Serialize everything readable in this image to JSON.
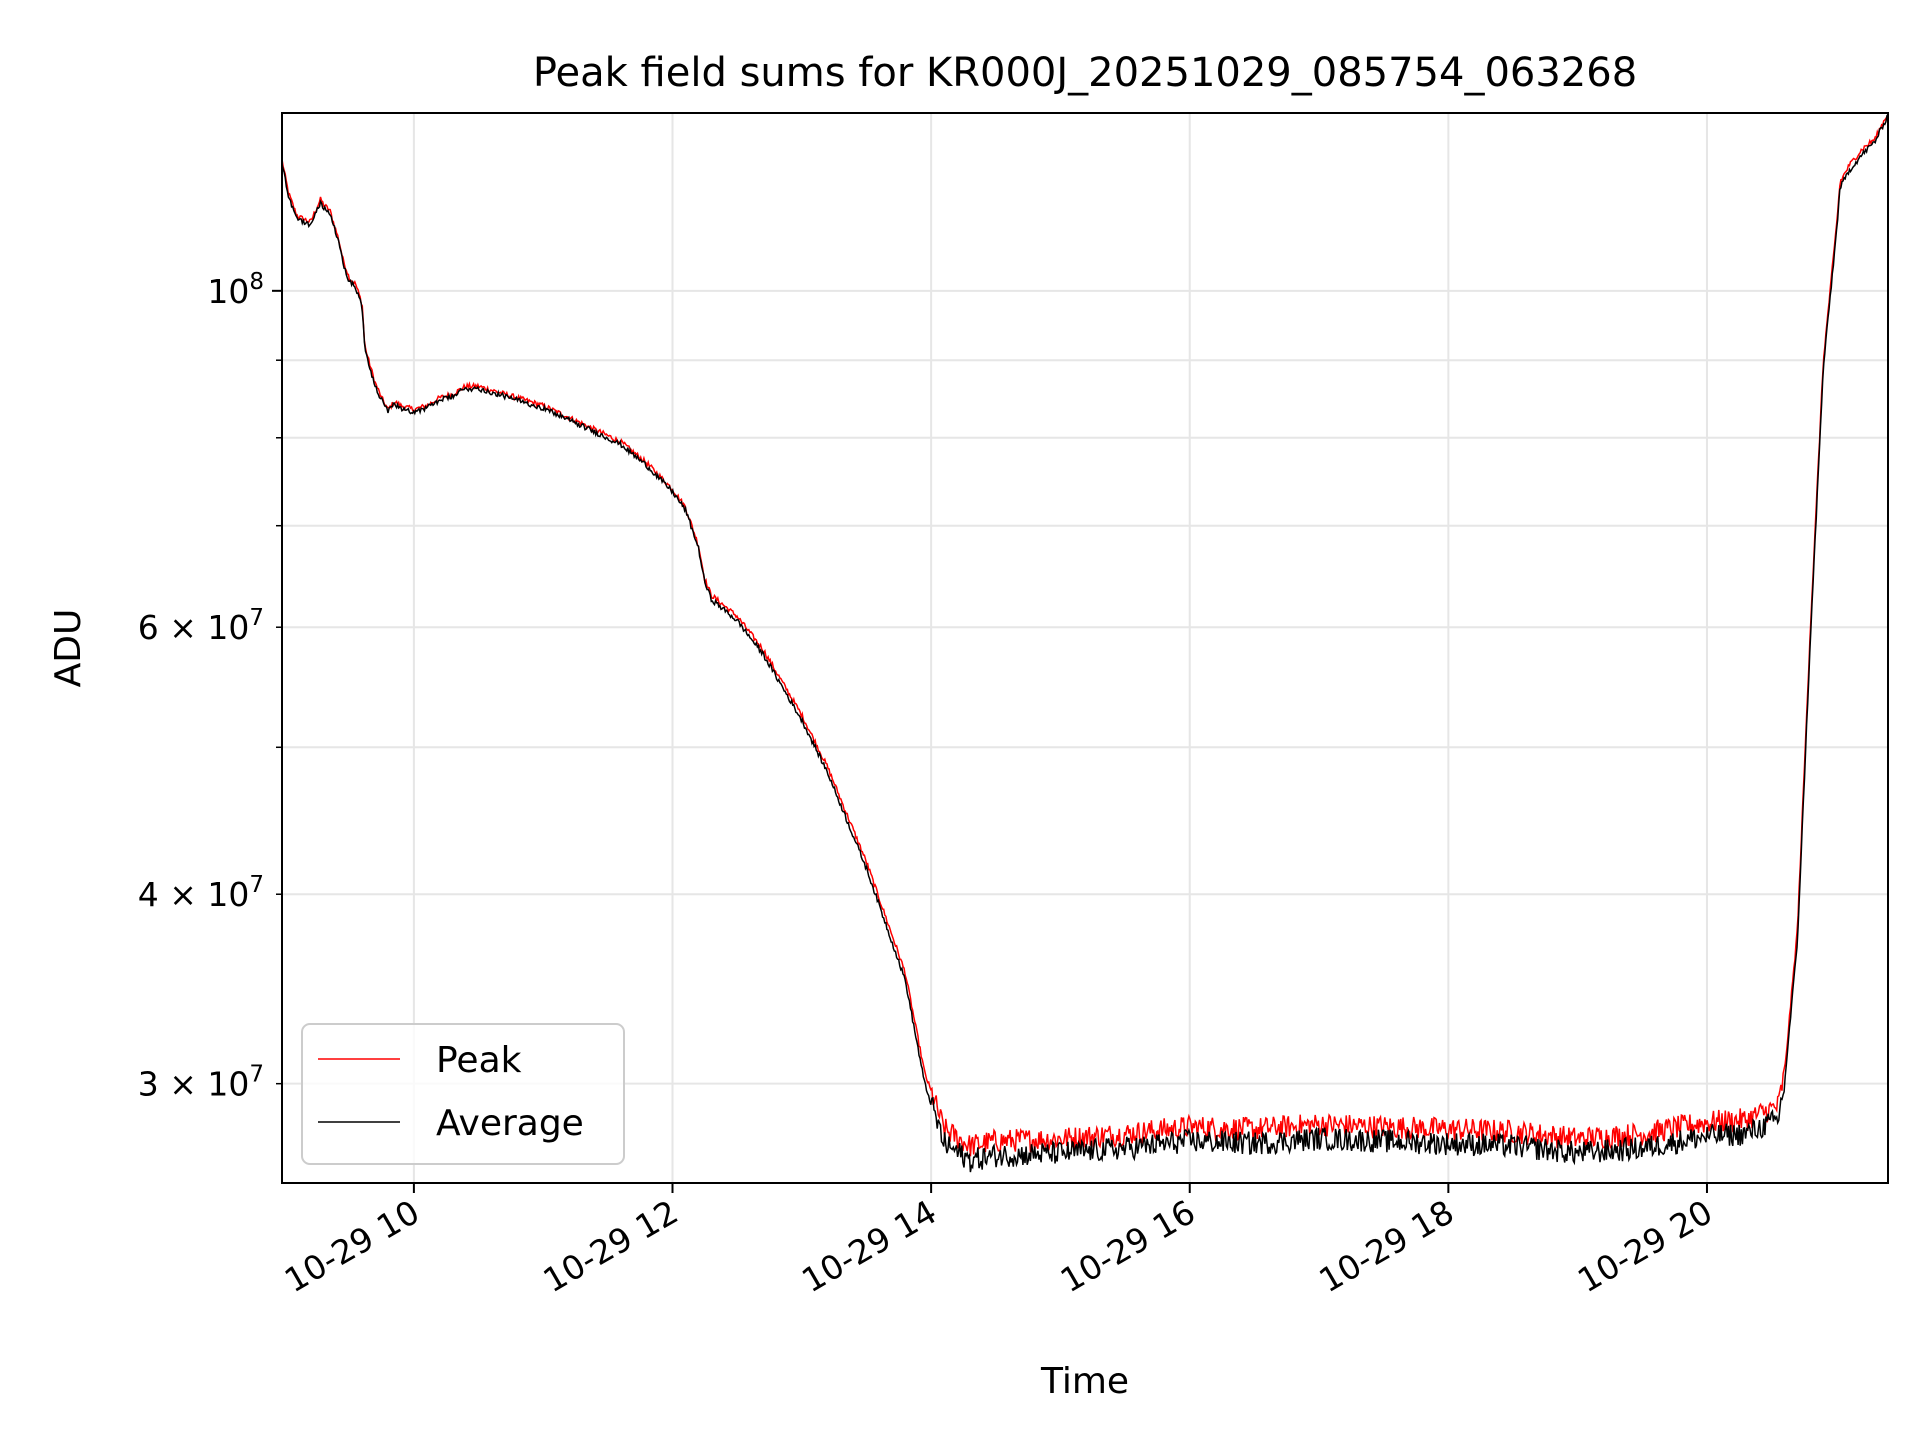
{
  "chart_data": {
    "type": "line",
    "title": "Peak field sums for KR000J_20251029_085754_063268",
    "xlabel": "Time",
    "ylabel": "ADU",
    "yscale": "log",
    "grid": true,
    "legend_position": "lower-left",
    "x_unit": "hours since 10-29 00:00",
    "xlim": [
      8.98,
      21.4
    ],
    "ylim": [
      25800000,
      131000000
    ],
    "x_ticks": [
      {
        "value": 10,
        "label": "10-29 10"
      },
      {
        "value": 12,
        "label": "10-29 12"
      },
      {
        "value": 14,
        "label": "10-29 14"
      },
      {
        "value": 16,
        "label": "10-29 16"
      },
      {
        "value": 18,
        "label": "10-29 18"
      },
      {
        "value": 20,
        "label": "10-29 20"
      }
    ],
    "y_ticks_major": [
      {
        "value": 100000000,
        "base": "10",
        "exp": "8"
      }
    ],
    "y_ticks_minor": [
      {
        "value": 30000000,
        "base": "3 × 10",
        "exp": "7"
      },
      {
        "value": 40000000,
        "base": "4 × 10",
        "exp": "7"
      },
      {
        "value": 50000000
      },
      {
        "value": 60000000,
        "base": "6 × 10",
        "exp": "7"
      },
      {
        "value": 70000000
      },
      {
        "value": 80000000
      },
      {
        "value": 90000000
      }
    ],
    "legend": {
      "peak_label": "Peak",
      "average_label": "Average"
    },
    "colors": {
      "peak": "#ff0000",
      "average": "#000000",
      "grid": "#e6e6e6"
    },
    "x": [
      8.98,
      9.03,
      9.08,
      9.1,
      9.2,
      9.28,
      9.3,
      9.35,
      9.42,
      9.45,
      9.5,
      9.55,
      9.6,
      9.62,
      9.65,
      9.7,
      9.75,
      9.8,
      9.85,
      9.9,
      10.0,
      10.1,
      10.2,
      10.3,
      10.4,
      10.5,
      10.6,
      10.7,
      10.8,
      11.0,
      11.2,
      11.4,
      11.6,
      11.8,
      12.0,
      12.1,
      12.2,
      12.25,
      12.3,
      12.5,
      12.7,
      13.0,
      13.2,
      13.5,
      13.8,
      13.95,
      14.1,
      14.3,
      14.5,
      15.0,
      15.5,
      16.0,
      16.5,
      17.0,
      17.5,
      18.0,
      18.5,
      19.0,
      19.5,
      20.0,
      20.3,
      20.55,
      20.6,
      20.7,
      20.8,
      20.9,
      21.0,
      21.03,
      21.1,
      21.2,
      21.3,
      21.4
    ],
    "series": [
      {
        "name": "Peak",
        "values": [
          122000000,
          116000000,
          113000000,
          112000000,
          111000000,
          115000000,
          114000000,
          113000000,
          108000000,
          105000000,
          102000000,
          101000000,
          98000000,
          92000000,
          90000000,
          87000000,
          85000000,
          83500000,
          84500000,
          84000000,
          83500000,
          84000000,
          85000000,
          85500000,
          86500000,
          86500000,
          86000000,
          85500000,
          85000000,
          84000000,
          82500000,
          81000000,
          79500000,
          77000000,
          74000000,
          72000000,
          68000000,
          64500000,
          63000000,
          61000000,
          58000000,
          52500000,
          48500000,
          42000000,
          35500000,
          30500000,
          28000000,
          27300000,
          27500000,
          27600000,
          27800000,
          28100000,
          28000000,
          28200000,
          28100000,
          28000000,
          27900000,
          27600000,
          27800000,
          28300000,
          28400000,
          29000000,
          30500000,
          38000000,
          60000000,
          90000000,
          110000000,
          118000000,
          121000000,
          124000000,
          126000000,
          131000000
        ]
      },
      {
        "name": "Average",
        "values": [
          121500000,
          115500000,
          112500000,
          111500000,
          110500000,
          114500000,
          113500000,
          112500000,
          107500000,
          104500000,
          101500000,
          100500000,
          97500000,
          91500000,
          89500000,
          86500000,
          84700000,
          83200000,
          84200000,
          83700000,
          83200000,
          83700000,
          84700000,
          85200000,
          86200000,
          86200000,
          85700000,
          85200000,
          84700000,
          83700000,
          82200000,
          80700000,
          79200000,
          76700000,
          73700000,
          71700000,
          67700000,
          64200000,
          62600000,
          60600000,
          57600000,
          52100000,
          48100000,
          41600000,
          35100000,
          30000000,
          27400000,
          26700000,
          26900000,
          27000000,
          27200000,
          27500000,
          27400000,
          27600000,
          27500000,
          27400000,
          27300000,
          27000000,
          27200000,
          27700000,
          27800000,
          28400000,
          30000000,
          37300000,
          59000000,
          89000000,
          109000000,
          117000000,
          120000000,
          123000000,
          125500000,
          130500000
        ]
      }
    ]
  }
}
